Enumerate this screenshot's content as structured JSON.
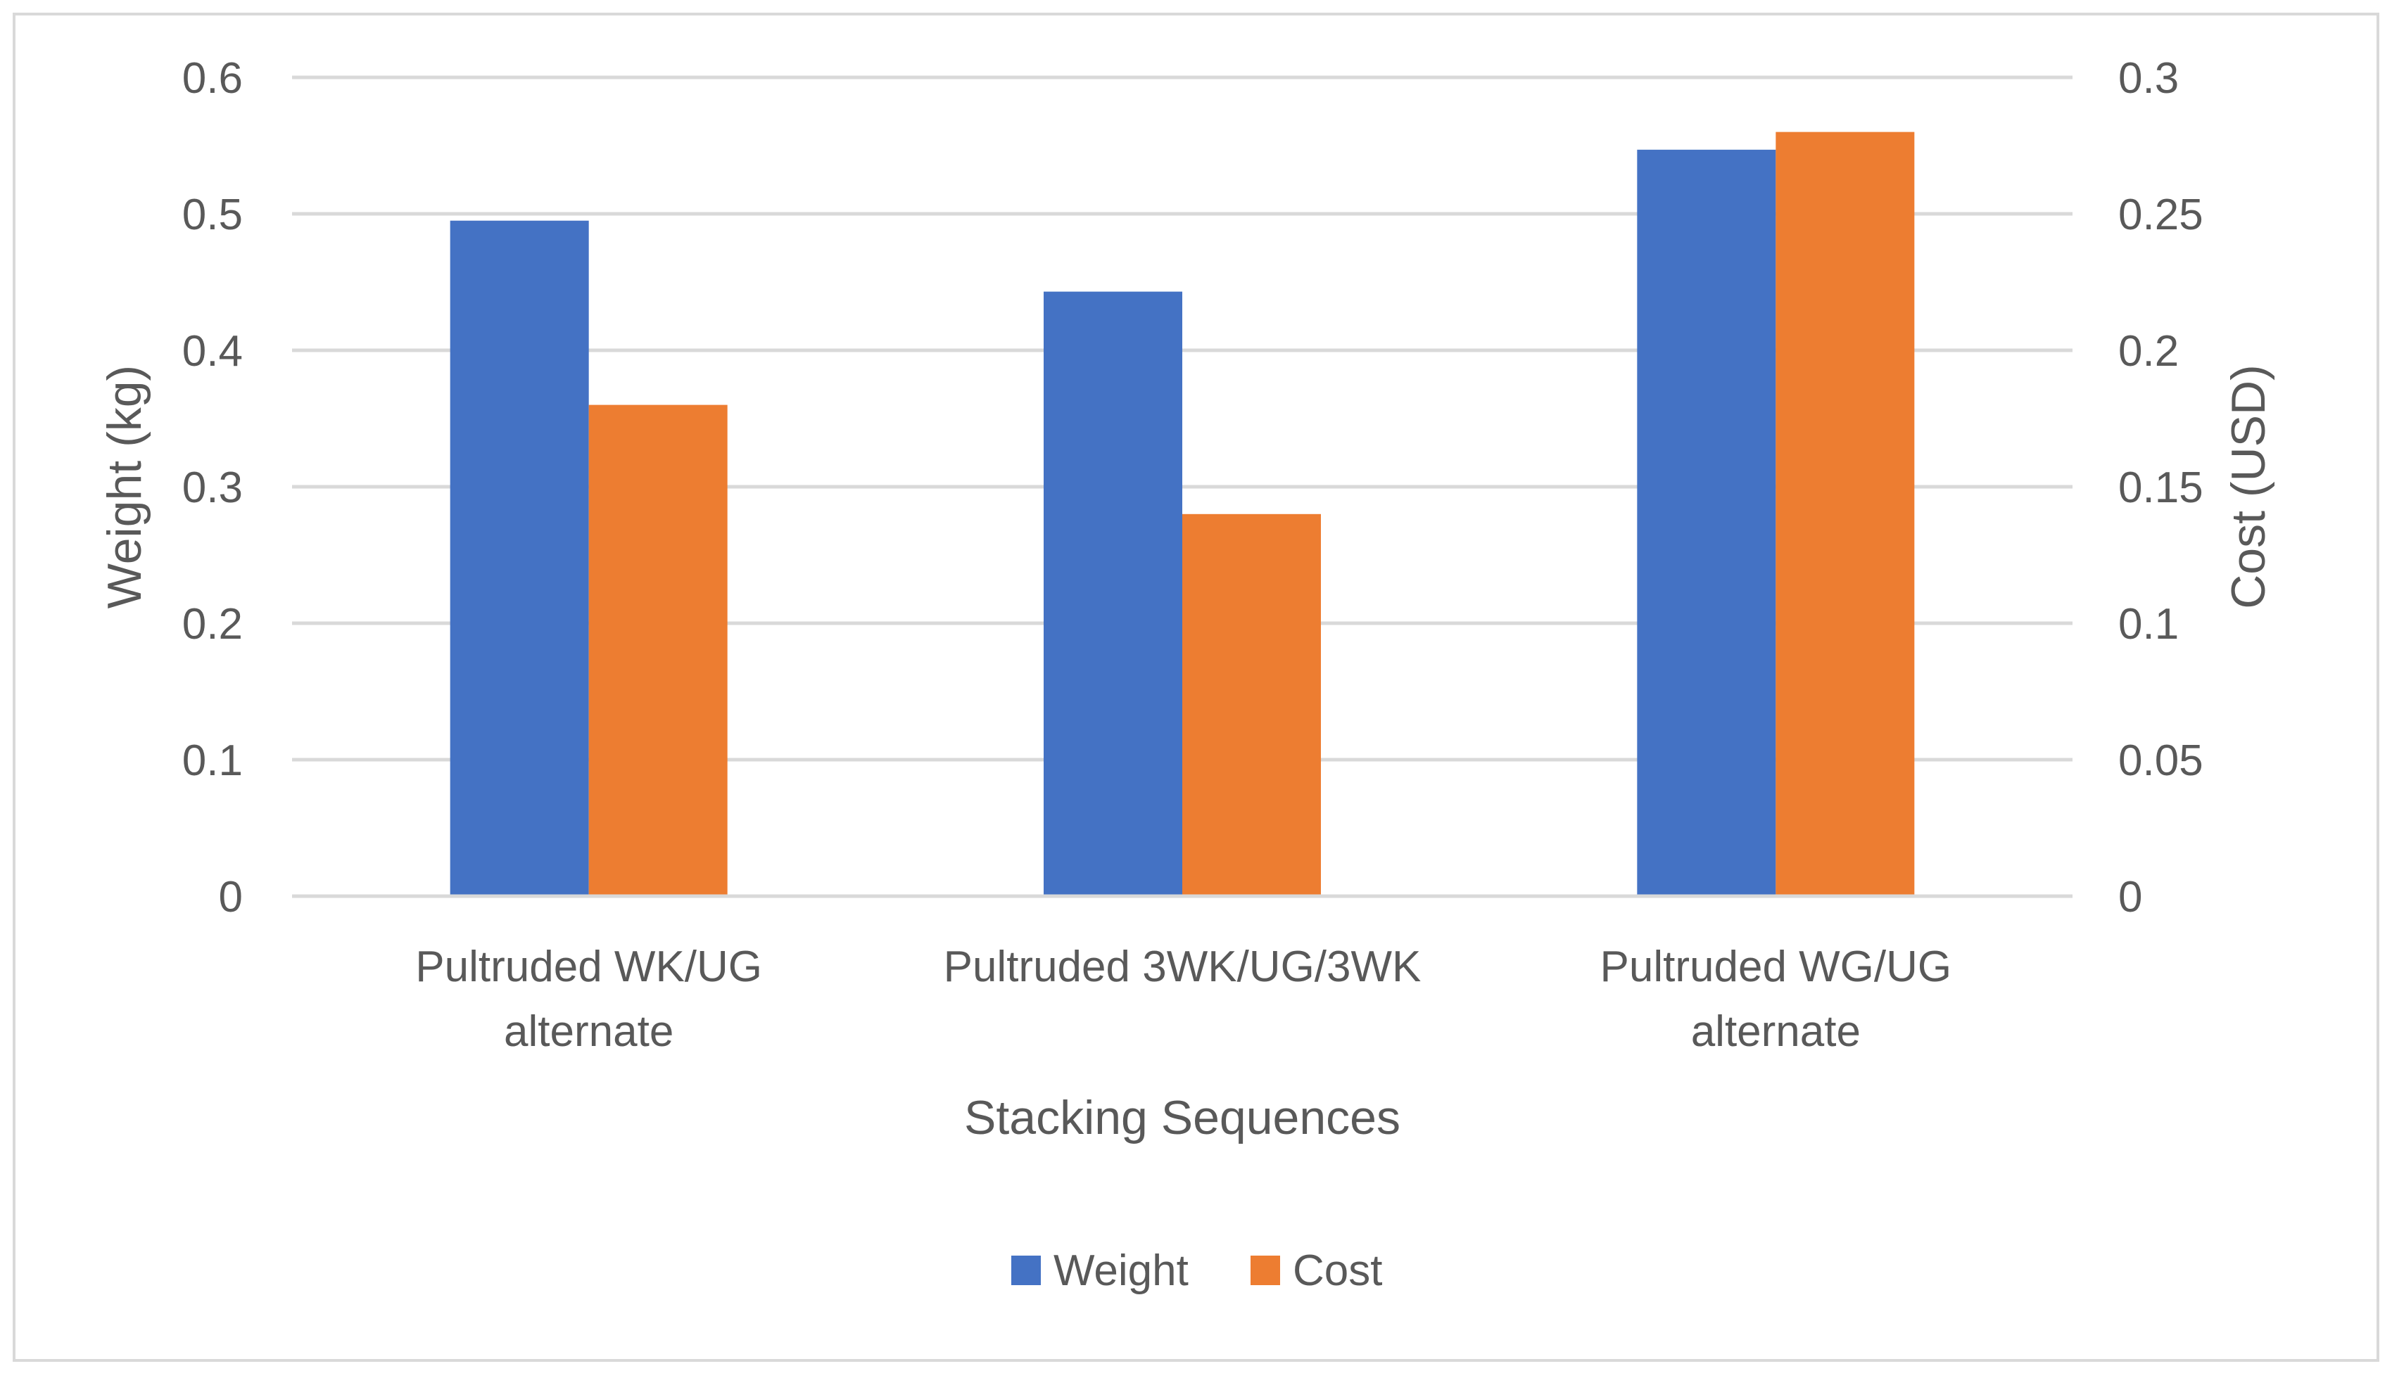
{
  "chart_data": {
    "type": "bar",
    "title": "",
    "xlabel": "Stacking Sequences",
    "ylabel": "Weight (kg)",
    "y2label": "Cost (USD)",
    "ylim": [
      0,
      0.6
    ],
    "y2lim": [
      0,
      0.3
    ],
    "yticks": [
      "0",
      "0.1",
      "0.2",
      "0.3",
      "0.4",
      "0.5",
      "0.6"
    ],
    "y2ticks": [
      "0",
      "0.05",
      "0.1",
      "0.15",
      "0.2",
      "0.25",
      "0.3"
    ],
    "categories": [
      [
        "Pultruded WK/UG",
        "alternate"
      ],
      [
        "Pultruded 3WK/UG/3WK"
      ],
      [
        "Pultruded WG/UG",
        "alternate"
      ]
    ],
    "series": [
      {
        "name": "Weight",
        "axis": "left",
        "color": "#4472C4",
        "values": [
          0.495,
          0.443,
          0.547
        ]
      },
      {
        "name": "Cost",
        "axis": "right",
        "color": "#ED7D31",
        "values": [
          0.18,
          0.14,
          0.28
        ]
      }
    ],
    "grid": true,
    "legend": "bottom"
  }
}
